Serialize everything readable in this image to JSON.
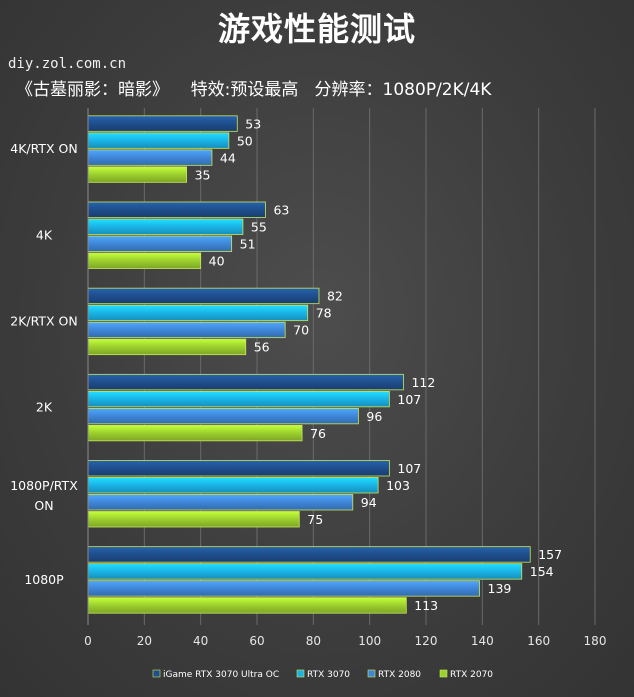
{
  "chart_data": {
    "type": "bar",
    "orientation": "horizontal",
    "title": "游戏性能测试",
    "watermark": "diy.zol.com.cn",
    "subtitle": "《古墓丽影：暗影》    特效:预设最高   分辨率：1080P/2K/4K",
    "categories": [
      "4K/RTX ON",
      "4K",
      "2K/RTX ON",
      "2K",
      "1080P/RTX ON",
      "1080P"
    ],
    "series": [
      {
        "name": "iGame RTX 3070 Ultra OC",
        "values": [
          53,
          63,
          82,
          112,
          107,
          157
        ],
        "color": "#1f4e8c"
      },
      {
        "name": "RTX 3070",
        "values": [
          50,
          55,
          78,
          107,
          103,
          154
        ],
        "color": "#1ab3e6"
      },
      {
        "name": "RTX 2080",
        "values": [
          44,
          51,
          70,
          96,
          94,
          139
        ],
        "color": "#3f86d8"
      },
      {
        "name": "RTX 2070",
        "values": [
          35,
          40,
          56,
          76,
          75,
          113
        ],
        "color": "#9ccf2e"
      }
    ],
    "xlim": [
      0,
      180
    ],
    "xticks": [
      0,
      20,
      40,
      60,
      80,
      100,
      120,
      140,
      160,
      180
    ],
    "grid": true,
    "legend_position": "bottom"
  }
}
